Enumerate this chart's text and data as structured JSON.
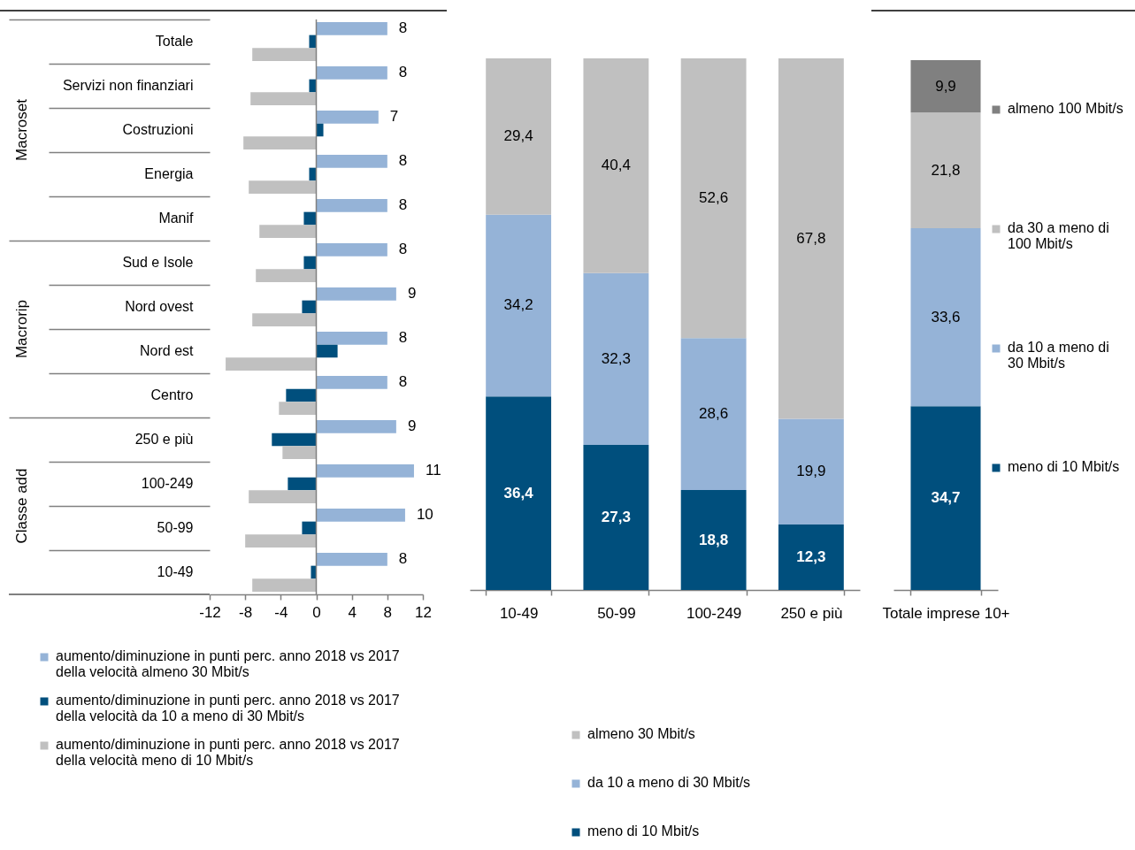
{
  "chart_data": [
    {
      "type": "bar",
      "orientation": "horizontal",
      "categories": [
        "Totale",
        "Servizi non finanziari",
        "Costruzioni",
        "Energia",
        "Manif",
        "Sud e Isole",
        "Nord ovest",
        "Nord est",
        "Centro",
        "250 e più",
        "100-249",
        "50-99",
        "10-49"
      ],
      "series": [
        {
          "name": "aumento/diminuzione in punti perc. anno 2018 vs 2017 della velocità almeno 30 Mbit/s",
          "color": "#95b3d7",
          "values": [
            8,
            8,
            7,
            8,
            8,
            8,
            9,
            8,
            8,
            9,
            11,
            10,
            8
          ],
          "value_labels": [
            "8",
            "8",
            "7",
            "8",
            "8",
            "8",
            "9",
            "8",
            "8",
            "9",
            "11",
            "10",
            "8"
          ]
        },
        {
          "name": "aumento/diminuzione in punti perc. anno 2018 vs 2017 della velocità da 10 a meno di 30 Mbit/s",
          "color": "#004f7d",
          "values": [
            -0.8,
            -0.8,
            0.8,
            -0.8,
            -1.4,
            -1.4,
            -1.6,
            2.4,
            -3.4,
            -5.0,
            -3.2,
            -1.6,
            -0.6
          ]
        },
        {
          "name": "aumento/diminuzione in punti perc. anno 2018 vs 2017 della velocità meno di 10 Mbit/s",
          "color": "#c0c0c0",
          "values": [
            -7.2,
            -7.4,
            -8.2,
            -7.6,
            -6.4,
            -6.8,
            -7.2,
            -10.2,
            -4.2,
            -3.8,
            -7.6,
            -8.0,
            -7.2
          ]
        }
      ],
      "xlim": [
        -12,
        12
      ],
      "xticks": [
        -12,
        -8,
        -4,
        0,
        4,
        8,
        12
      ],
      "ref_lines": [
        {
          "axis": "x",
          "value": 0,
          "color": "#808080"
        }
      ],
      "annotations": [
        "Macroset",
        "Macrorip",
        "Classe add"
      ],
      "legend": "bottom"
    },
    {
      "type": "bar",
      "stacked": true,
      "categories": [
        "10-49",
        "50-99",
        "100-249",
        "250 e più"
      ],
      "series": [
        {
          "name": "meno di 10 Mbit/s",
          "color": "#004f7d",
          "values": [
            36.4,
            27.3,
            18.8,
            12.3
          ],
          "value_labels": [
            "36,4",
            "27,3",
            "18,8",
            "12,3"
          ]
        },
        {
          "name": "da 10 a meno di 30 Mbit/s",
          "color": "#95b3d7",
          "values": [
            34.2,
            32.3,
            28.6,
            19.9
          ],
          "value_labels": [
            "34,2",
            "32,3",
            "28,6",
            "19,9"
          ]
        },
        {
          "name": "almeno 30 Mbit/s",
          "color": "#c0c0c0",
          "values": [
            29.4,
            40.4,
            52.6,
            67.8
          ],
          "value_labels": [
            "29,4",
            "40,4",
            "52,6",
            "67,8"
          ]
        }
      ],
      "tick_labels": "x",
      "legend": "bottom"
    },
    {
      "type": "bar",
      "stacked": true,
      "categories": [
        "Totale imprese 10+"
      ],
      "series": [
        {
          "name": "meno di 10 Mbit/s",
          "color": "#004f7d",
          "values": [
            34.7
          ],
          "value_labels": [
            "34,7"
          ]
        },
        {
          "name": "da 10 a meno di 30 Mbit/s",
          "color": "#95b3d7",
          "values": [
            33.6
          ],
          "value_labels": [
            "33,6"
          ]
        },
        {
          "name": "da 30 a meno di 100 Mbit/s",
          "color": "#c0c0c0",
          "values": [
            21.8
          ],
          "value_labels": [
            "21,8"
          ]
        },
        {
          "name": "almeno 100 Mbit/s",
          "color": "#808080",
          "values": [
            9.9
          ],
          "value_labels": [
            "9,9"
          ]
        }
      ],
      "tick_labels": "x",
      "legend": "right"
    }
  ]
}
